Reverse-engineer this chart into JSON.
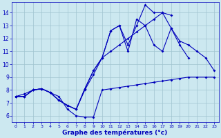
{
  "title": "Graphe des températures (°c)",
  "background_color": "#cce8f0",
  "grid_color": "#a0c4d0",
  "line_color": "#0000bb",
  "series": [
    {
      "x": [
        0,
        1,
        2,
        3,
        4,
        5,
        6,
        7,
        8,
        9,
        10,
        11,
        12,
        13,
        14,
        15,
        16,
        17,
        18,
        19,
        20,
        21,
        22,
        23
      ],
      "y": [
        7.5,
        7.5,
        8.0,
        8.1,
        7.8,
        7.5,
        6.5,
        6.0,
        5.9,
        5.9,
        8.0,
        8.1,
        8.2,
        8.3,
        8.4,
        8.5,
        8.6,
        8.7,
        8.8,
        8.9,
        9.0,
        9.0,
        9.0,
        9.0
      ]
    },
    {
      "x": [
        0,
        1,
        2,
        3,
        4,
        5,
        6,
        7,
        8,
        9,
        10,
        11,
        12,
        13,
        14,
        15,
        16,
        17,
        18,
        19,
        20
      ],
      "y": [
        7.5,
        7.5,
        8.0,
        8.1,
        7.8,
        7.2,
        6.8,
        6.5,
        8.1,
        9.5,
        10.5,
        12.6,
        13.0,
        11.0,
        13.5,
        13.0,
        11.5,
        11.0,
        12.8,
        11.5,
        10.5
      ]
    },
    {
      "x": [
        0,
        1,
        2,
        3,
        4,
        5,
        6,
        7,
        8,
        9,
        10,
        11,
        12,
        13,
        14,
        15,
        16,
        17,
        18
      ],
      "y": [
        7.5,
        7.5,
        8.0,
        8.1,
        7.8,
        7.2,
        6.8,
        6.5,
        8.1,
        9.5,
        10.5,
        12.6,
        13.0,
        11.5,
        13.0,
        14.6,
        14.0,
        14.0,
        13.8
      ]
    },
    {
      "x": [
        0,
        1,
        2,
        3,
        4,
        5,
        6,
        7,
        8,
        9,
        10,
        11,
        12,
        13,
        14,
        15,
        16,
        17,
        18,
        19,
        20,
        21,
        22,
        23
      ],
      "y": [
        7.5,
        7.7,
        8.0,
        8.1,
        7.8,
        7.2,
        6.8,
        6.5,
        8.0,
        9.2,
        10.5,
        11.0,
        11.5,
        12.0,
        12.5,
        13.0,
        13.5,
        14.0,
        12.8,
        11.8,
        11.5,
        11.0,
        10.5,
        9.5
      ]
    }
  ],
  "ylim": [
    5.5,
    14.8
  ],
  "yticks": [
    6,
    7,
    8,
    9,
    10,
    11,
    12,
    13,
    14
  ],
  "xlim": [
    -0.5,
    23.5
  ],
  "xticks": [
    0,
    1,
    2,
    3,
    4,
    5,
    6,
    7,
    8,
    9,
    10,
    11,
    12,
    13,
    14,
    15,
    16,
    17,
    18,
    19,
    20,
    21,
    22,
    23
  ],
  "xlabel_bold": true,
  "xlabel_fontsize": 6.5,
  "tick_fontsize_x": 4.5,
  "tick_fontsize_y": 5.5,
  "linewidth": 0.8,
  "markersize": 2.0
}
